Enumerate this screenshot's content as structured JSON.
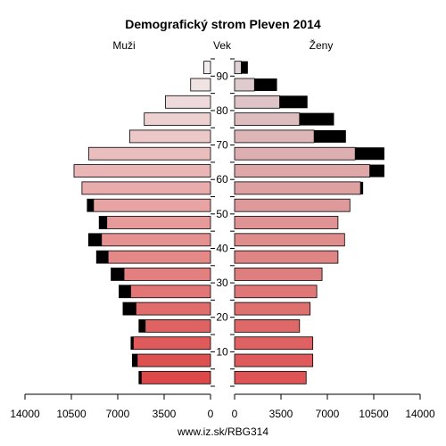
{
  "chart_data": {
    "type": "bar",
    "subtype": "population-pyramid",
    "title": "Demografický strom Pleven 2014",
    "left_label": "Muži",
    "center_label": "Vek",
    "right_label": "Ženy",
    "footer": "www.iz.sk/RBG314",
    "x_ticks_left": [
      "14000",
      "10500",
      "7000",
      "3500",
      "0"
    ],
    "x_ticks_right": [
      "0",
      "3500",
      "7000",
      "10500",
      "14000"
    ],
    "x_tick_values": [
      0,
      3500,
      7000,
      10500,
      14000
    ],
    "xlim": [
      0,
      14000
    ],
    "age_ticks": [
      "10",
      "20",
      "30",
      "40",
      "50",
      "60",
      "70",
      "80",
      "90"
    ],
    "age_tick_values": [
      10,
      20,
      30,
      40,
      50,
      60,
      70,
      80,
      90
    ],
    "age_groups": [
      "0-4",
      "5-9",
      "10-14",
      "15-19",
      "20-24",
      "25-29",
      "30-34",
      "35-39",
      "40-44",
      "45-49",
      "50-54",
      "55-59",
      "60-64",
      "65-69",
      "70-74",
      "75-79",
      "80-84",
      "85-89",
      "90+"
    ],
    "age_group_centers": [
      2.5,
      7.5,
      12.5,
      17.5,
      22.5,
      27.5,
      32.5,
      37.5,
      42.5,
      47.5,
      52.5,
      57.5,
      62.5,
      67.5,
      72.5,
      77.5,
      82.5,
      87.5,
      92.5
    ],
    "men": [
      5400,
      5900,
      6000,
      5400,
      6600,
      6900,
      7500,
      8600,
      9200,
      8400,
      9300,
      9700,
      10300,
      9200,
      6100,
      5000,
      3400,
      1500,
      500
    ],
    "men_excess_over_women": [
      200,
      400,
      200,
      500,
      1000,
      900,
      1000,
      900,
      1000,
      600,
      500,
      0,
      0,
      0,
      0,
      0,
      0,
      0,
      0
    ],
    "women": [
      5400,
      5900,
      5900,
      4900,
      5700,
      6200,
      6600,
      7800,
      8300,
      7800,
      8700,
      9500,
      10200,
      9100,
      6000,
      4900,
      3400,
      1500,
      500
    ],
    "women_excess_over_men": [
      0,
      0,
      0,
      0,
      0,
      0,
      0,
      0,
      0,
      0,
      0,
      200,
      1100,
      2200,
      2400,
      2600,
      2100,
      1700,
      500
    ]
  }
}
